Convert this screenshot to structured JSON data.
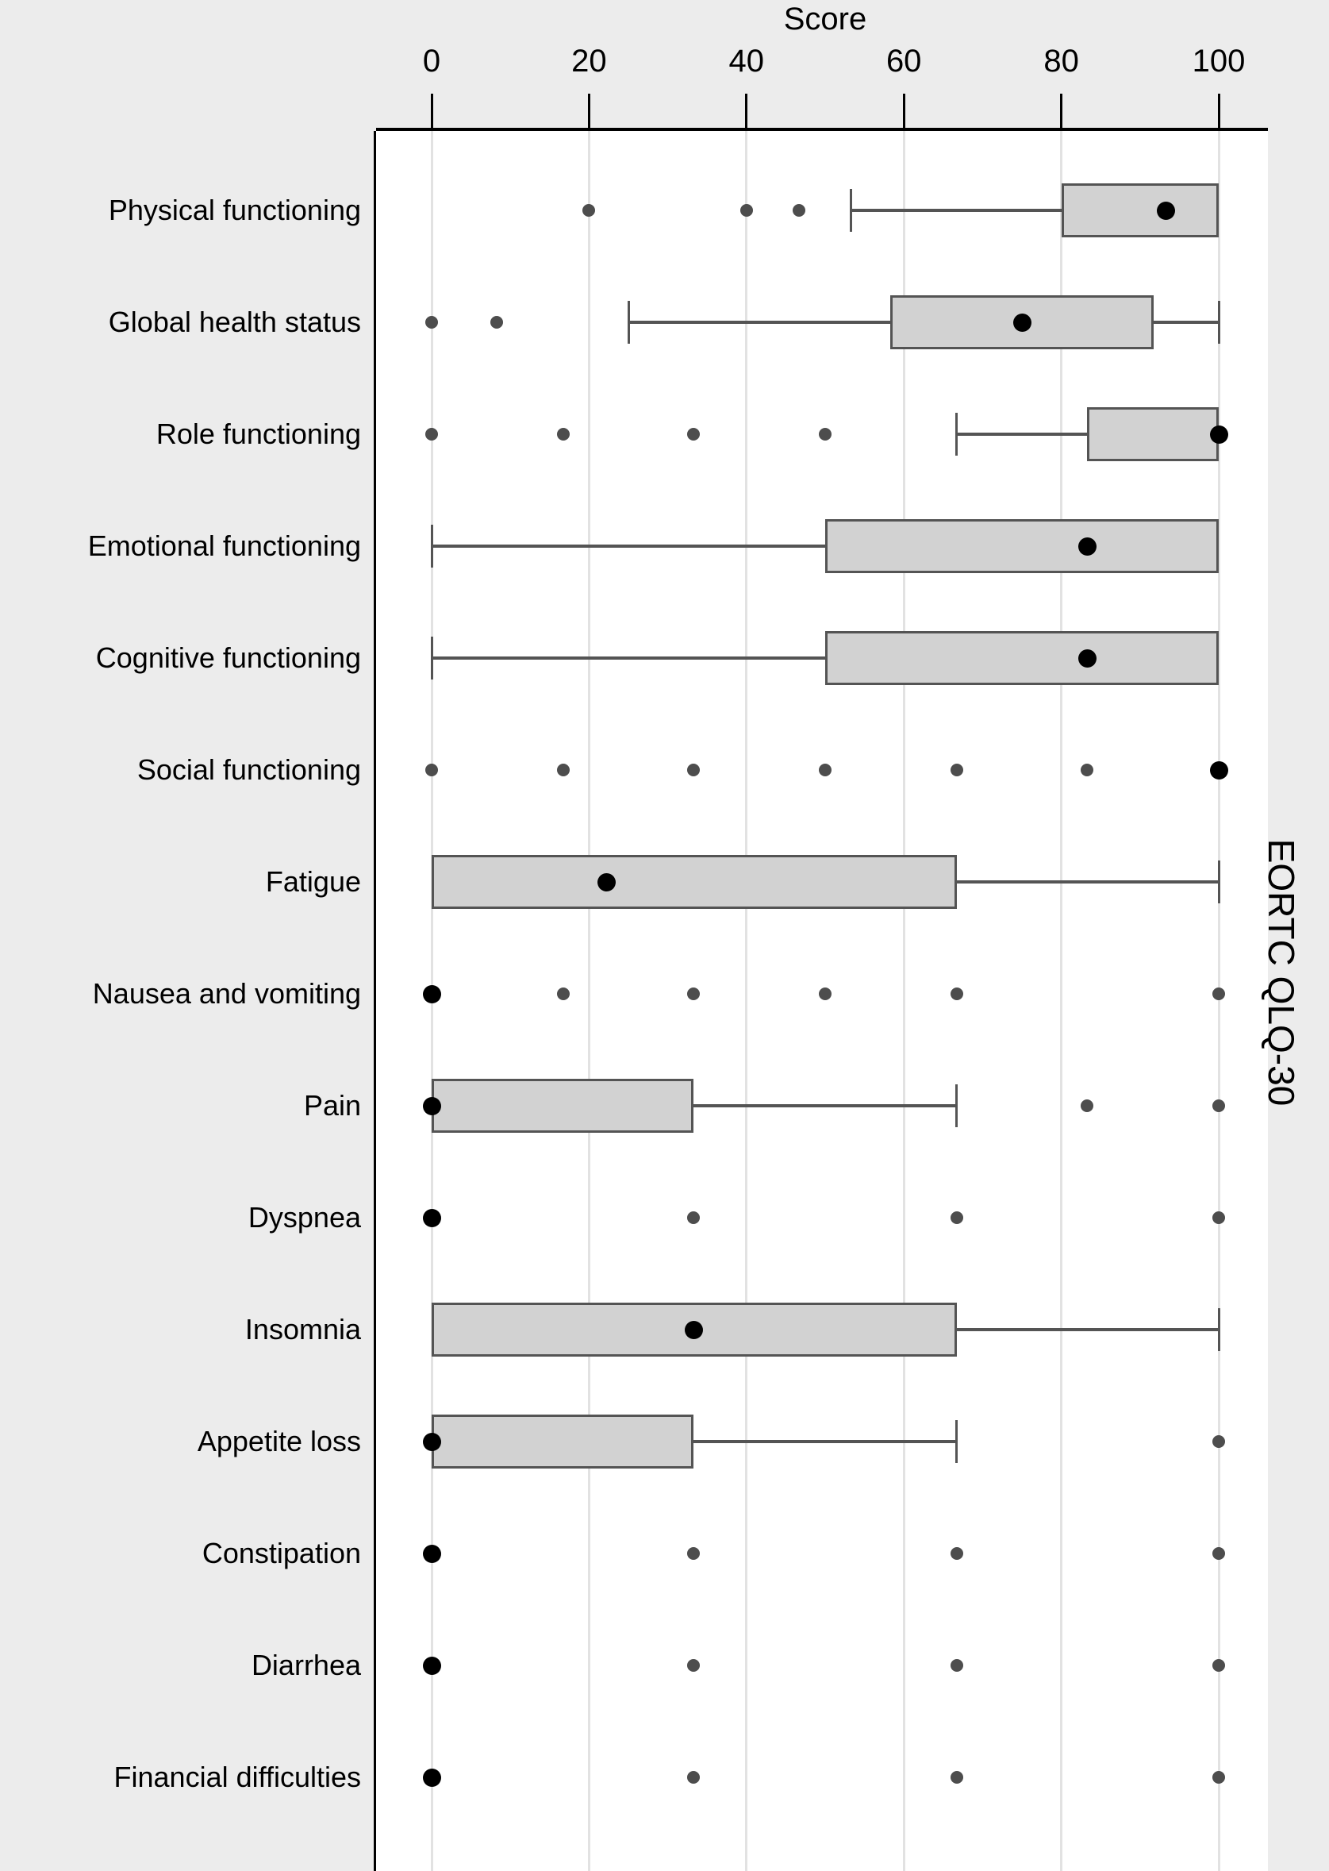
{
  "chart_data": {
    "type": "boxplot",
    "orientation": "horizontal",
    "title": "Score",
    "right_axis_label": "EORTC QLQ-30",
    "axis": {
      "min": 0,
      "max": 100,
      "ticks": [
        0,
        20,
        40,
        60,
        80,
        100
      ],
      "grid": true,
      "position": "top"
    },
    "rows": [
      {
        "label": "Physical functioning",
        "points": [
          20,
          40,
          46.7
        ],
        "whisker_low": 53.3,
        "q1": 80,
        "q3": 100,
        "whisker_high": null,
        "mean": 93.3
      },
      {
        "label": "Global health status",
        "points": [
          0,
          8.3
        ],
        "whisker_low": 25,
        "q1": 58.3,
        "q3": 91.7,
        "whisker_high": 100,
        "mean": 75
      },
      {
        "label": "Role functioning",
        "points": [
          0,
          16.7,
          33.3,
          50
        ],
        "whisker_low": 66.7,
        "q1": 83.3,
        "q3": 100,
        "whisker_high": null,
        "mean": 100
      },
      {
        "label": "Emotional functioning",
        "points": [],
        "whisker_low": 0,
        "q1": 50,
        "q3": 100,
        "whisker_high": null,
        "mean": 83.3
      },
      {
        "label": "Cognitive functioning",
        "points": [],
        "whisker_low": 0,
        "q1": 50,
        "q3": 100,
        "whisker_high": null,
        "mean": 83.3
      },
      {
        "label": "Social functioning",
        "points": [
          0,
          16.7,
          33.3,
          50,
          66.7,
          83.3
        ],
        "whisker_low": null,
        "q1": null,
        "q3": null,
        "whisker_high": null,
        "mean": 100
      },
      {
        "label": "Fatigue",
        "points": [],
        "whisker_low": null,
        "q1": 0,
        "q3": 66.7,
        "whisker_high": 100,
        "mean": 22.2
      },
      {
        "label": "Nausea and vomiting",
        "points": [
          16.7,
          33.3,
          50,
          66.7,
          100
        ],
        "whisker_low": null,
        "q1": null,
        "q3": null,
        "whisker_high": null,
        "mean": 0
      },
      {
        "label": "Pain",
        "points": [
          83.3,
          100
        ],
        "whisker_low": null,
        "q1": 0,
        "q3": 33.3,
        "whisker_high": 66.7,
        "mean": 0
      },
      {
        "label": "Dyspnea",
        "points": [
          33.3,
          66.7,
          100
        ],
        "whisker_low": null,
        "q1": null,
        "q3": null,
        "whisker_high": null,
        "mean": 0
      },
      {
        "label": "Insomnia",
        "points": [],
        "whisker_low": null,
        "q1": 0,
        "q3": 66.7,
        "whisker_high": 100,
        "mean": 33.3
      },
      {
        "label": "Appetite loss",
        "points": [
          100
        ],
        "whisker_low": null,
        "q1": 0,
        "q3": 33.3,
        "whisker_high": 66.7,
        "mean": 0
      },
      {
        "label": "Constipation",
        "points": [
          33.3,
          66.7,
          100
        ],
        "whisker_low": null,
        "q1": null,
        "q3": null,
        "whisker_high": null,
        "mean": 0
      },
      {
        "label": "Diarrhea",
        "points": [
          33.3,
          66.7,
          100
        ],
        "whisker_low": null,
        "q1": null,
        "q3": null,
        "whisker_high": null,
        "mean": 0
      },
      {
        "label": "Financial difficulties",
        "points": [
          33.3,
          66.7,
          100
        ],
        "whisker_low": null,
        "q1": null,
        "q3": null,
        "whisker_high": null,
        "mean": 0
      }
    ],
    "colors": {
      "background": "#ececec",
      "plot_background": "#ffffff",
      "gridline": "#e2e2e2",
      "axis": "#000000",
      "box_fill": "#d2d2d2",
      "box_border": "#545454",
      "whisker": "#545454",
      "outlier_dot": "#4d4d4d",
      "mean_dot": "#000000"
    }
  }
}
